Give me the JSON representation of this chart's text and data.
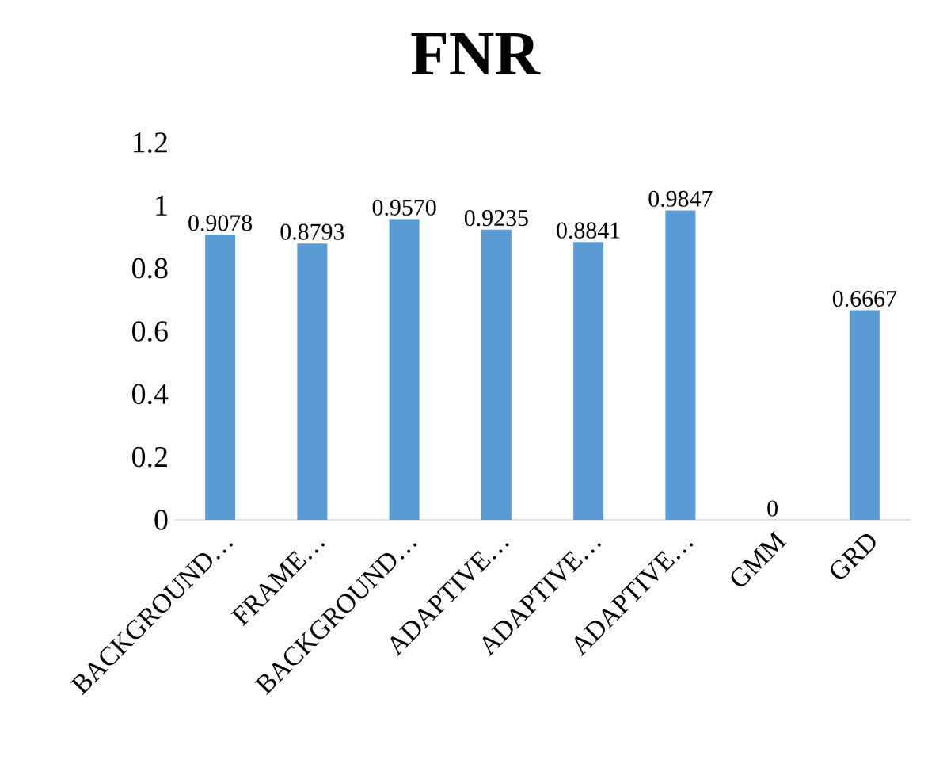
{
  "chart_data": {
    "type": "bar",
    "title": "FNR",
    "categories": [
      "BACKGROUND…",
      "FRAME…",
      "BACKGROUND…",
      "ADAPTIVE…",
      "ADAPTIVE…",
      "ADAPTIVE…",
      "GMM",
      "GRD"
    ],
    "values": [
      0.9078,
      0.8793,
      0.957,
      0.9235,
      0.8841,
      0.9847,
      0,
      0.6667
    ],
    "value_labels": [
      "0.9078",
      "0.8793",
      "0.9570",
      "0.9235",
      "0.8841",
      "0.9847",
      "0",
      "0.6667"
    ],
    "color": "#5b9bd5",
    "ylim": [
      0,
      1.2
    ],
    "yticks": [
      0,
      0.2,
      0.4,
      0.6,
      0.8,
      1,
      1.2
    ]
  }
}
